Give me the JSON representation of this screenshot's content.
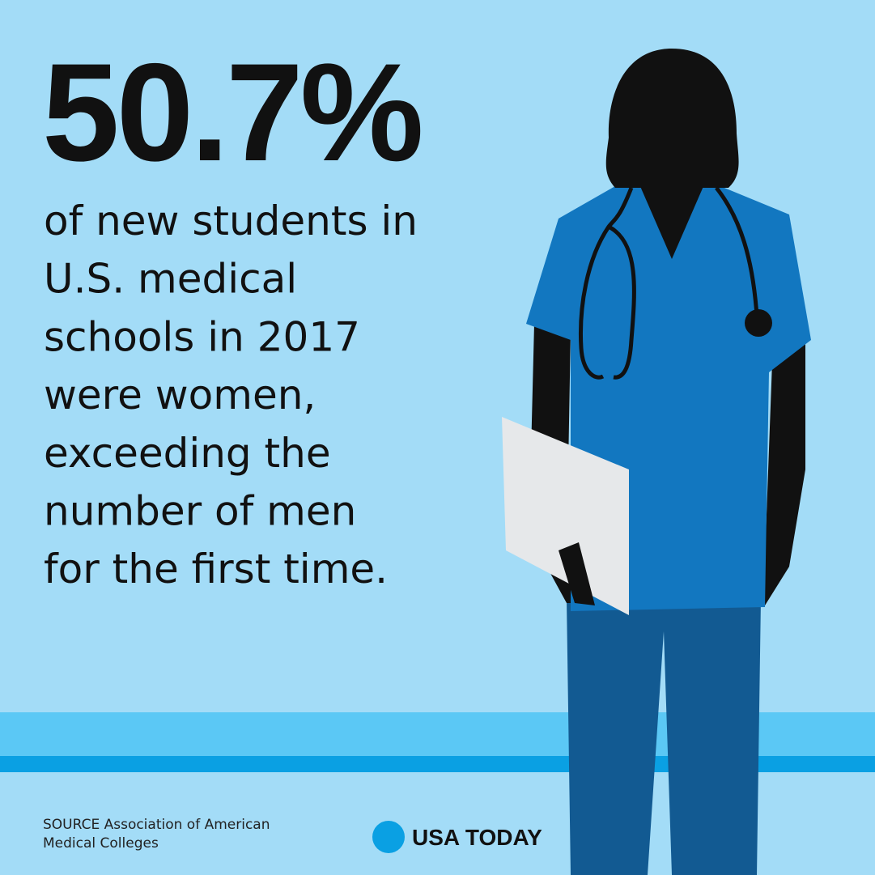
{
  "headline": "50.7%",
  "body_lines": [
    "of new students in",
    "U.S. medical",
    "schools in 2017",
    "were women,",
    "exceeding the",
    "number of men",
    "for the first time."
  ],
  "source_lines": [
    "SOURCE Association of American",
    "Medical Colleges"
  ],
  "brand": "USA TODAY"
}
